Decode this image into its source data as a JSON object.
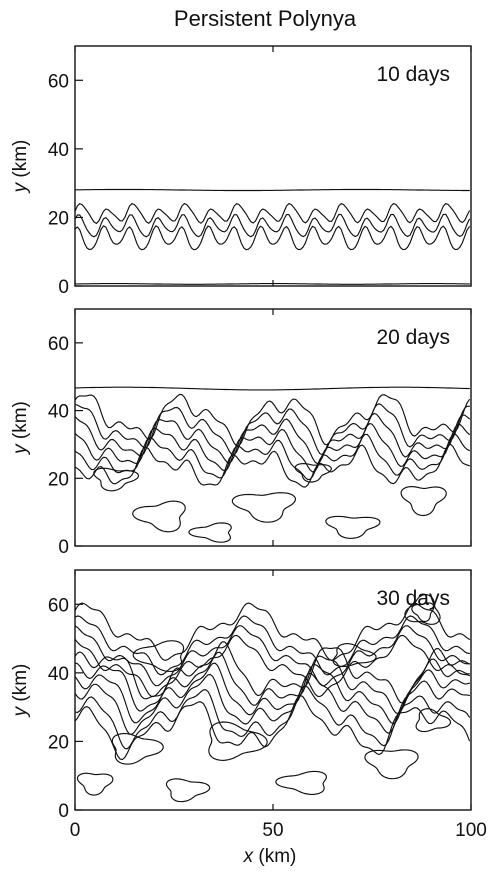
{
  "title": "Persistent Polynya",
  "chart_data": {
    "type": "contour",
    "xlabel_var": "x",
    "xlabel_unit": "(km)",
    "ylabel_var": "y",
    "ylabel_unit": "(km)",
    "xlim": [
      0,
      100
    ],
    "xticks": [
      0,
      50,
      100
    ],
    "panels": [
      {
        "label": "10 days",
        "ylim": [
          0,
          70
        ],
        "yticks": [
          0,
          20,
          40,
          60
        ]
      },
      {
        "label": "20 days",
        "ylim": [
          0,
          70
        ],
        "yticks": [
          0,
          20,
          40,
          60
        ]
      },
      {
        "label": "30 days",
        "ylim": [
          0,
          70
        ],
        "yticks": [
          0,
          20,
          40,
          60
        ]
      }
    ]
  }
}
